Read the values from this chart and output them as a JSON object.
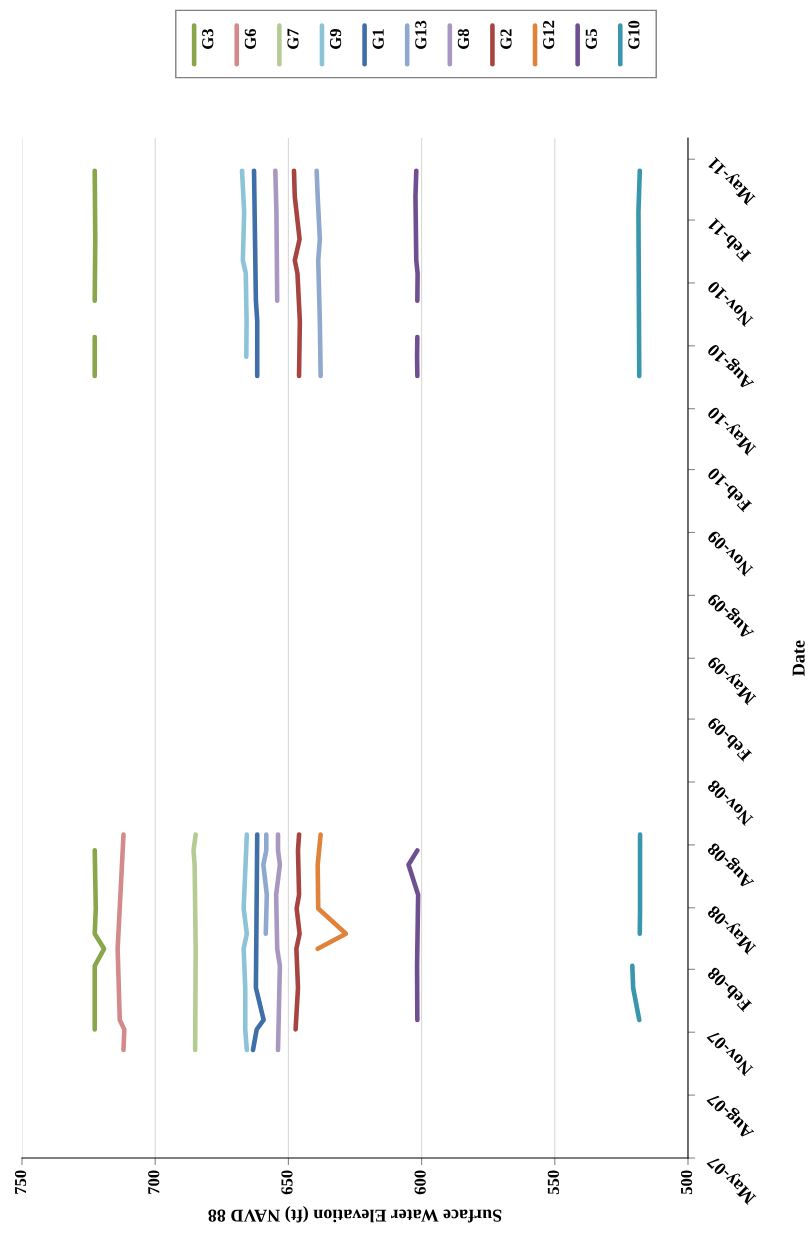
{
  "chart_data": {
    "type": "line",
    "orientation": "horizontal",
    "ylabel": "Date",
    "xlabel": "Surface Water Elevation (ft) NAVD 88",
    "ylim": [
      "2007-05-01",
      "2011-06-01"
    ],
    "yticks": [
      {
        "value": "2007-05-01",
        "label": "May-07"
      },
      {
        "value": "2007-08-01",
        "label": "Aug-07"
      },
      {
        "value": "2007-11-01",
        "label": "Nov-07"
      },
      {
        "value": "2008-02-01",
        "label": "Feb-08"
      },
      {
        "value": "2008-05-01",
        "label": "May-08"
      },
      {
        "value": "2008-08-01",
        "label": "Aug-08"
      },
      {
        "value": "2008-11-01",
        "label": "Nov-08"
      },
      {
        "value": "2009-02-01",
        "label": "Feb-09"
      },
      {
        "value": "2009-05-01",
        "label": "May-09"
      },
      {
        "value": "2009-08-01",
        "label": "Aug-09"
      },
      {
        "value": "2009-11-01",
        "label": "Nov-09"
      },
      {
        "value": "2010-02-01",
        "label": "Feb-10"
      },
      {
        "value": "2010-05-01",
        "label": "May-10"
      },
      {
        "value": "2010-08-01",
        "label": "Aug-10"
      },
      {
        "value": "2010-11-01",
        "label": "Nov-10"
      },
      {
        "value": "2011-02-01",
        "label": "Feb-11"
      },
      {
        "value": "2011-05-01",
        "label": "May-11"
      }
    ],
    "xlim": [
      750,
      500
    ],
    "xticks": [
      750,
      700,
      650,
      600,
      550,
      500
    ],
    "grid": "x",
    "legend": "top",
    "series": [
      {
        "name": "G3",
        "color": "#8aa64a",
        "x": [
          "2007-11-05",
          "2008-02-06",
          "2008-03-02",
          "2008-03-24",
          "2008-04-30",
          "2008-07-24",
          "2009-06-01",
          "2010-06-18",
          "2010-08-14",
          "2010-09-06",
          "2010-10-06",
          "2011-01-04",
          "2011-04-14"
        ],
        "values": [
          722.7,
          722.7,
          719.2,
          722.7,
          722.3,
          722.7,
          null,
          722.7,
          722.7,
          null,
          722.7,
          722.5,
          722.7
        ]
      },
      {
        "name": "G6",
        "color": "#d48a8a",
        "x": [
          "2007-10-06",
          "2007-11-05",
          "2007-11-19",
          "2008-03-02",
          "2008-07-24",
          "2008-08-16"
        ],
        "values": [
          711.9,
          711.6,
          713.3,
          714.1,
          712.2,
          711.9
        ]
      },
      {
        "name": "G7",
        "color": "#b4cc94",
        "x": [
          "2007-10-06",
          "2008-03-02",
          "2008-07-03",
          "2008-07-24",
          "2008-08-16"
        ],
        "values": [
          685.0,
          684.8,
          685.2,
          685.6,
          684.8
        ]
      },
      {
        "name": "G9",
        "color": "#8cc3d6",
        "x": [
          "2007-10-06",
          "2007-11-05",
          "2008-01-05",
          "2008-03-02",
          "2008-03-24",
          "2008-04-30",
          "2008-08-16",
          "2009-06-01",
          "2010-07-16",
          "2010-09-06",
          "2010-11-15",
          "2010-12-04",
          "2011-02-13",
          "2011-04-14"
        ],
        "values": [
          665.6,
          666.2,
          666.2,
          666.8,
          665.6,
          666.8,
          665.6,
          null,
          665.8,
          665.7,
          666.0,
          667.1,
          666.6,
          667.4
        ]
      },
      {
        "name": "G1",
        "color": "#3e6fa8",
        "x": [
          "2007-10-06",
          "2007-11-05",
          "2007-11-19",
          "2008-01-05",
          "2008-08-16",
          "2009-06-01",
          "2010-06-18",
          "2010-09-06",
          "2010-10-06",
          "2011-04-14"
        ],
        "values": [
          663.3,
          661.9,
          659.3,
          662.2,
          661.7,
          null,
          661.7,
          661.7,
          662.2,
          662.9
        ]
      },
      {
        "name": "G13",
        "color": "#8fa8cf",
        "x": [
          "2008-03-24",
          "2008-05-20",
          "2008-07-03",
          "2008-07-24",
          "2008-08-16",
          "2009-06-01",
          "2010-06-18",
          "2010-09-06",
          "2010-12-04",
          "2011-01-04",
          "2011-03-07",
          "2011-04-14"
        ],
        "values": [
          658.5,
          658.1,
          659.4,
          658.3,
          658.3,
          null,
          637.9,
          638.2,
          638.8,
          638.2,
          639.0,
          639.4
        ]
      },
      {
        "name": "G8",
        "color": "#a898c0",
        "x": [
          "2007-10-06",
          "2008-02-06",
          "2008-03-02",
          "2008-05-20",
          "2008-07-03",
          "2008-07-24",
          "2008-08-16",
          "2009-06-01",
          "2010-10-06",
          "2011-02-13",
          "2011-04-14"
        ],
        "values": [
          653.9,
          653.2,
          654.2,
          654.6,
          653.2,
          653.9,
          653.9,
          null,
          654.2,
          654.5,
          654.9
        ]
      },
      {
        "name": "G2",
        "color": "#a84440",
        "x": [
          "2007-11-05",
          "2008-01-05",
          "2008-03-02",
          "2008-03-24",
          "2008-04-30",
          "2008-05-20",
          "2008-07-24",
          "2008-08-16",
          "2009-06-01",
          "2010-06-18",
          "2010-09-06",
          "2010-11-15",
          "2010-12-04",
          "2011-01-04",
          "2011-03-07",
          "2011-04-14"
        ],
        "values": [
          647.3,
          646.4,
          647.0,
          645.8,
          646.9,
          646.0,
          646.4,
          646.0,
          null,
          646.0,
          645.7,
          646.6,
          647.6,
          645.8,
          647.6,
          647.9
        ]
      },
      {
        "name": "G12",
        "color": "#e0823a",
        "x": [
          "2008-03-02",
          "2008-03-24",
          "2008-04-30",
          "2008-07-03",
          "2008-08-16"
        ],
        "values": [
          639.0,
          628.4,
          638.8,
          639.0,
          637.9
        ]
      },
      {
        "name": "G5",
        "color": "#6e5091",
        "x": [
          "2007-11-19",
          "2008-02-06",
          "2008-05-20",
          "2008-07-03",
          "2008-07-24",
          "2009-06-01",
          "2010-06-18",
          "2010-07-16",
          "2010-08-14",
          "2010-09-06",
          "2010-10-06",
          "2010-11-15",
          "2010-12-04",
          "2011-03-07",
          "2011-04-14"
        ],
        "values": [
          601.6,
          601.7,
          601.3,
          604.9,
          601.6,
          null,
          601.6,
          601.7,
          601.6,
          null,
          601.6,
          601.5,
          602.0,
          602.3,
          602.0
        ]
      },
      {
        "name": "G10",
        "color": "#3a96ad",
        "x": [
          "2007-11-19",
          "2008-01-05",
          "2008-02-06",
          "2008-03-02",
          "2008-03-24",
          "2008-04-30",
          "2008-08-16",
          "2009-06-01",
          "2010-06-18",
          "2011-02-13",
          "2011-04-14"
        ],
        "values": [
          518.3,
          520.6,
          520.9,
          null,
          518.1,
          518.0,
          518.0,
          null,
          518.3,
          518.6,
          518.1
        ]
      }
    ]
  }
}
